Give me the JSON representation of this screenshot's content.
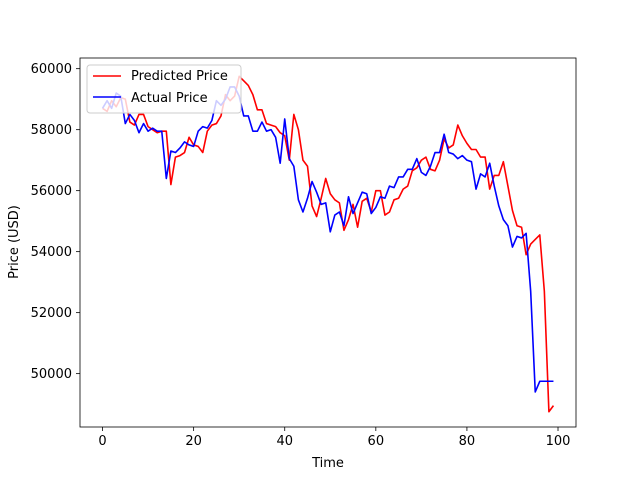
{
  "chart_data": {
    "type": "line",
    "xlabel": "Time",
    "ylabel": "Price (USD)",
    "xlim": [
      -4.95,
      103.95
    ],
    "ylim": [
      48250,
      60350
    ],
    "xticks": [
      0,
      20,
      40,
      60,
      80,
      100
    ],
    "yticks": [
      50000,
      52000,
      54000,
      56000,
      58000,
      60000
    ],
    "xtick_labels": [
      "0",
      "20",
      "40",
      "60",
      "80",
      "100"
    ],
    "ytick_labels": [
      "50000",
      "52000",
      "54000",
      "56000",
      "58000",
      "60000"
    ],
    "grid": false,
    "legend_position": "top-left",
    "series": [
      {
        "name": "Predicted Price",
        "color": "#ff0000",
        "x": [
          0,
          1,
          2,
          3,
          4,
          5,
          6,
          7,
          8,
          9,
          10,
          11,
          12,
          13,
          14,
          15,
          16,
          17,
          18,
          19,
          20,
          21,
          22,
          23,
          24,
          25,
          26,
          27,
          28,
          29,
          30,
          31,
          32,
          33,
          34,
          35,
          36,
          37,
          38,
          39,
          40,
          41,
          42,
          43,
          44,
          45,
          46,
          47,
          48,
          49,
          50,
          51,
          52,
          53,
          54,
          55,
          56,
          57,
          58,
          59,
          60,
          61,
          62,
          63,
          64,
          65,
          66,
          67,
          68,
          69,
          70,
          71,
          72,
          73,
          74,
          75,
          76,
          77,
          78,
          79,
          80,
          81,
          82,
          83,
          84,
          85,
          86,
          87,
          88,
          89,
          90,
          91,
          92,
          93,
          94,
          95,
          96,
          97,
          98,
          99
        ],
        "values": [
          58700,
          58600,
          58950,
          58750,
          59050,
          59000,
          58250,
          58150,
          58500,
          58500,
          58100,
          58000,
          57900,
          57950,
          57950,
          56200,
          57100,
          57150,
          57250,
          57750,
          57500,
          57450,
          57250,
          57950,
          58150,
          58200,
          58450,
          59150,
          58950,
          59100,
          59750,
          59600,
          59450,
          59150,
          58650,
          58650,
          58200,
          58150,
          58100,
          57900,
          57800,
          57000,
          58500,
          58000,
          57000,
          56800,
          55500,
          55150,
          55750,
          56400,
          55900,
          55700,
          55600,
          54700,
          55050,
          55550,
          54800,
          55650,
          55750,
          55300,
          56000,
          56000,
          55200,
          55300,
          55700,
          55750,
          56050,
          56150,
          56650,
          56750,
          57000,
          57100,
          56700,
          56650,
          57000,
          57700,
          57400,
          57500,
          58150,
          57800,
          57550,
          57350,
          57350,
          57100,
          57100,
          56050,
          56500,
          56500,
          56950,
          56150,
          55350,
          54850,
          54800,
          53900,
          54250,
          54400,
          54550,
          52700,
          48750,
          48950
        ]
      },
      {
        "name": "Actual Price",
        "color": "#0000ff",
        "x": [
          0,
          1,
          2,
          3,
          4,
          5,
          6,
          7,
          8,
          9,
          10,
          11,
          12,
          13,
          14,
          15,
          16,
          17,
          18,
          19,
          20,
          21,
          22,
          23,
          24,
          25,
          26,
          27,
          28,
          29,
          30,
          31,
          32,
          33,
          34,
          35,
          36,
          37,
          38,
          39,
          40,
          41,
          42,
          43,
          44,
          45,
          46,
          47,
          48,
          49,
          50,
          51,
          52,
          53,
          54,
          55,
          56,
          57,
          58,
          59,
          60,
          61,
          62,
          63,
          64,
          65,
          66,
          67,
          68,
          69,
          70,
          71,
          72,
          73,
          74,
          75,
          76,
          77,
          78,
          79,
          80,
          81,
          82,
          83,
          84,
          85,
          86,
          87,
          88,
          89,
          90,
          91,
          92,
          93,
          94,
          95,
          96,
          97,
          98,
          99
        ],
        "values": [
          58700,
          58950,
          58700,
          59200,
          59100,
          58200,
          58500,
          58300,
          57900,
          58200,
          57950,
          58050,
          57950,
          57950,
          56400,
          57300,
          57250,
          57400,
          57600,
          57500,
          57450,
          57950,
          58100,
          58050,
          58300,
          58950,
          58800,
          59000,
          59400,
          59400,
          59100,
          58450,
          58450,
          57950,
          57950,
          58250,
          57950,
          58000,
          57750,
          56900,
          58350,
          57050,
          56800,
          55700,
          55300,
          55750,
          56300,
          55950,
          55550,
          55600,
          54650,
          55200,
          55300,
          54850,
          55800,
          55250,
          55600,
          55950,
          55900,
          55250,
          55450,
          55800,
          55750,
          56150,
          56100,
          56450,
          56450,
          56700,
          56700,
          57050,
          56600,
          56500,
          56800,
          57250,
          57250,
          57850,
          57250,
          57200,
          57050,
          57150,
          57000,
          56950,
          56050,
          56550,
          56450,
          56900,
          56150,
          55500,
          55050,
          54850,
          54150,
          54500,
          54450,
          54600,
          52700,
          49400,
          49750,
          49750,
          49750,
          49750
        ]
      }
    ]
  }
}
